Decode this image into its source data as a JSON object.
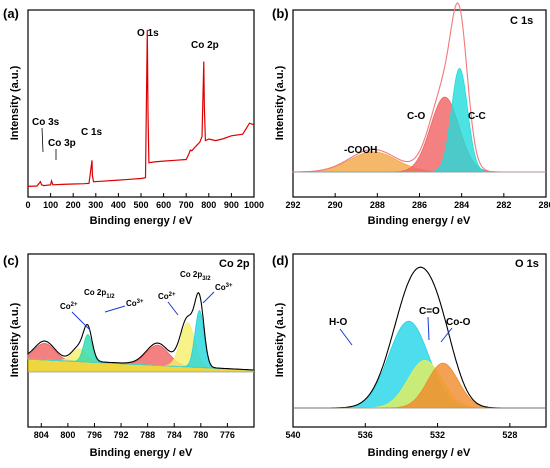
{
  "chart_data": [
    {
      "panel": "(a)",
      "type": "line",
      "title": "",
      "xlabel": "Binding energy / eV",
      "ylabel": "Intensity (a.u.)",
      "xlim": [
        0,
        1000
      ],
      "xticks": [
        "0",
        "100",
        "200",
        "300",
        "400",
        "500",
        "600",
        "700",
        "800",
        "900",
        "1000"
      ],
      "color": "#dd0000",
      "series": [
        {
          "x": [
            0,
            40,
            55,
            60,
            70,
            100,
            104,
            110,
            150,
            200,
            250,
            270,
            283,
            285,
            290,
            320,
            400,
            450,
            500,
            520,
            528,
            531,
            535,
            560,
            600,
            650,
            700,
            710,
            718,
            725,
            740,
            760,
            770,
            778,
            780,
            785,
            800,
            830,
            860,
            900,
            950,
            980,
            1000
          ],
          "y": [
            2,
            2.5,
            8,
            4,
            3,
            4,
            9,
            4,
            4.5,
            5,
            5.5,
            6,
            35,
            16,
            8,
            8.5,
            10,
            11,
            12,
            13,
            200,
            95,
            32,
            33,
            34,
            35,
            36,
            42,
            48,
            47,
            52,
            58,
            65,
            160,
            105,
            60,
            62,
            60,
            62,
            66,
            68,
            82,
            80
          ]
        }
      ],
      "annotations": [
        "Co 3s",
        "Co 3p",
        "C 1s",
        "O 1s",
        "Co 2p"
      ]
    },
    {
      "panel": "(b)",
      "type": "line",
      "title": "C 1s",
      "xlabel": "Binding energy / eV",
      "ylabel": "Intensity (a.u.)",
      "xlim": [
        292,
        280
      ],
      "xticks": [
        "292",
        "290",
        "288",
        "286",
        "284",
        "282",
        "280"
      ],
      "peaks": [
        {
          "name": "-COOH",
          "center": 288.2,
          "height": 0.14,
          "fwhm": 2.6,
          "color": "#f2a545"
        },
        {
          "name": "C-O",
          "center": 284.8,
          "height": 0.52,
          "fwhm": 1.6,
          "color": "#f06262"
        },
        {
          "name": "C-C",
          "center": 284.1,
          "height": 0.72,
          "fwhm": 0.9,
          "color": "#22dcdc"
        }
      ],
      "envelope_color": "#f07a7a",
      "annotations": [
        "-COOH",
        "C-O",
        "C-C"
      ]
    },
    {
      "panel": "(c)",
      "type": "line",
      "title": "Co 2p",
      "xlabel": "Binding energy / eV",
      "ylabel": "Intensity (a.u.)",
      "xlim": [
        806,
        772
      ],
      "xticks": [
        "804",
        "800",
        "796",
        "792",
        "788",
        "784",
        "780",
        "776"
      ],
      "peaks": [
        {
          "name": "sat",
          "center": 803.5,
          "height": 0.18,
          "fwhm": 3.5,
          "color": "#f06262"
        },
        {
          "name": "Co2+",
          "center": 798.3,
          "height": 0.14,
          "fwhm": 2.5,
          "color": "#f5f06a"
        },
        {
          "name": "Co3+",
          "center": 797.0,
          "height": 0.3,
          "fwhm": 1.5,
          "color": "#2bd9b0"
        },
        {
          "name": "sat",
          "center": 786.5,
          "height": 0.22,
          "fwhm": 4,
          "color": "#f06262"
        },
        {
          "name": "Co2+",
          "center": 782.0,
          "height": 0.48,
          "fwhm": 2.5,
          "color": "#f5f06a"
        },
        {
          "name": "Co3+",
          "center": 780.2,
          "height": 0.62,
          "fwhm": 1.6,
          "color": "#22d4dc"
        }
      ],
      "envelope_color": "#000000",
      "annotations": [
        "Co2+",
        "Co 2p1/2",
        "Co3+",
        "Co2+",
        "Co 2p3/2",
        "Co3+"
      ]
    },
    {
      "panel": "(d)",
      "type": "line",
      "title": "O 1s",
      "xlabel": "Binding energy / eV",
      "ylabel": "Intensity (a.u.)",
      "xlim": [
        540,
        526
      ],
      "xticks": [
        "540",
        "536",
        "532",
        "528"
      ],
      "peaks": [
        {
          "name": "H-O",
          "center": 533.6,
          "height": 0.62,
          "fwhm": 2.6,
          "color": "#22d4e8"
        },
        {
          "name": "C=O",
          "center": 532.7,
          "height": 0.34,
          "fwhm": 2.2,
          "color": "#e8f05a"
        },
        {
          "name": "Co-O",
          "center": 531.7,
          "height": 0.32,
          "fwhm": 2.0,
          "color": "#f08a2a"
        }
      ],
      "envelope_color": "#000000",
      "annotations": [
        "H-O",
        "C=O",
        "Co-O"
      ]
    }
  ],
  "panels": {
    "a": {
      "label": "(a)",
      "ylabel": "Intensity (a.u.)",
      "xlabel": "Binding energy / eV",
      "ann": [
        "Co 3s",
        "Co 3p",
        "C 1s",
        "O 1s",
        "Co 2p"
      ]
    },
    "b": {
      "label": "(b)",
      "title": "C 1s",
      "ylabel": "Intensity (a.u.)",
      "xlabel": "Binding energy / eV",
      "ann": [
        "-COOH",
        "C-O",
        "C-C"
      ]
    },
    "c": {
      "label": "(c)",
      "title": "Co 2p",
      "ylabel": "Intensity (a.u.)",
      "xlabel": "Binding energy / eV",
      "ann": [
        "Co",
        "2+",
        "Co 2p",
        "1/2",
        "Co",
        "3+",
        "Co",
        "2+",
        "Co 2p",
        "3/2",
        "Co",
        "3+"
      ]
    },
    "d": {
      "label": "(d)",
      "title": "O 1s",
      "ylabel": "Intensity (a.u.)",
      "xlabel": "Binding energy / eV",
      "ann": [
        "H-O",
        "C=O",
        "Co-O"
      ]
    }
  }
}
